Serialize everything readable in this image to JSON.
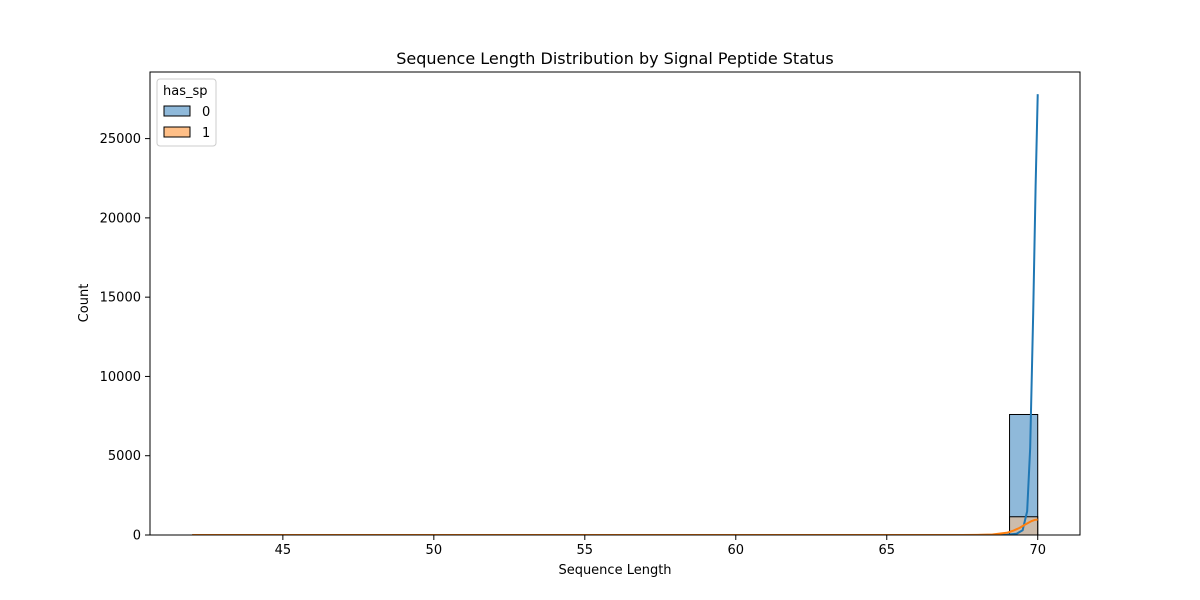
{
  "chart_data": {
    "type": "histogram",
    "title": "Sequence Length Distribution by Signal Peptide Status",
    "xlabel": "Sequence Length",
    "ylabel": "Count",
    "xlim": [
      40.6,
      71.4
    ],
    "ylim": [
      0,
      29200
    ],
    "x_ticks": [
      45,
      50,
      55,
      60,
      65,
      70
    ],
    "y_ticks": [
      0,
      5000,
      10000,
      15000,
      20000,
      25000
    ],
    "grid": false,
    "legend": {
      "title": "has_sp",
      "placement": "top-left",
      "entries": [
        "0",
        "1"
      ]
    },
    "bins": {
      "start": 42,
      "end": 70,
      "count": 30
    },
    "series": [
      {
        "name": "0",
        "color": "#1f77b4",
        "fill_color": "#8fb9da",
        "bin_counts": [
          0,
          0,
          0,
          0,
          0,
          0,
          0,
          0,
          0,
          0,
          0,
          0,
          0,
          0,
          0,
          0,
          0,
          0,
          0,
          0,
          0,
          0,
          0,
          0,
          0,
          0,
          0,
          0,
          0,
          7600
        ],
        "kde": {
          "x": [
            42,
            50,
            60,
            65,
            67,
            68,
            68.5,
            69,
            69.3,
            69.5,
            69.65,
            69.75,
            69.85,
            69.93,
            70
          ],
          "y": [
            0,
            0,
            0,
            0,
            0,
            0,
            5,
            25,
            80,
            300,
            1500,
            5500,
            14000,
            22000,
            27800
          ]
        }
      },
      {
        "name": "1",
        "color": "#ff7f0e",
        "fill_color": "#ffbf87",
        "bin_counts": [
          0,
          0,
          0,
          0,
          0,
          0,
          0,
          0,
          0,
          0,
          0,
          0,
          0,
          0,
          0,
          0,
          0,
          0,
          0,
          0,
          0,
          0,
          0,
          0,
          0,
          0,
          0,
          0,
          0,
          1150
        ],
        "kde": {
          "x": [
            42,
            60,
            67.5,
            68,
            68.5,
            69,
            69.2,
            69.4,
            69.55,
            69.7,
            69.8,
            69.9,
            70
          ],
          "y": [
            0,
            0,
            0,
            5,
            30,
            150,
            280,
            450,
            620,
            780,
            880,
            950,
            980
          ]
        }
      }
    ]
  }
}
